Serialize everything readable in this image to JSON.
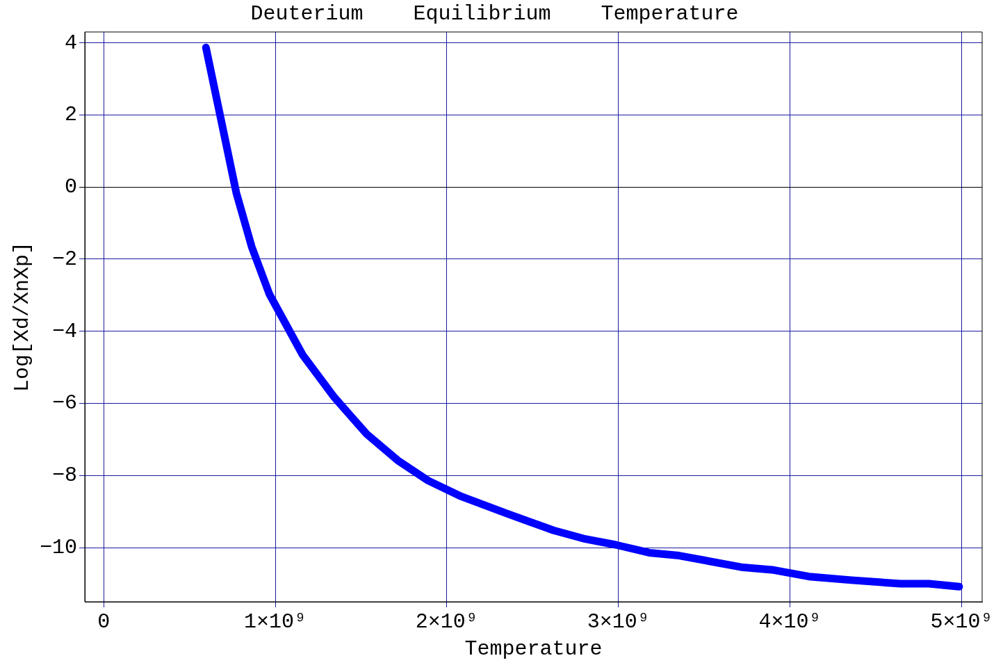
{
  "chart_data": {
    "type": "line",
    "title": "Deuterium    Equilibrium    Temperature",
    "xlabel": "Temperature",
    "ylabel": "Log[Xd/XnXp]",
    "x": [
      596000000,
      773000000,
      863000000,
      966000000,
      1159000000,
      1344000000,
      1533000000,
      1714000000,
      1891000000,
      2084000000,
      2343000000,
      2622000000,
      2807000000,
      2984000000,
      3180000000,
      3354000000,
      3716000000,
      3905000000,
      4110000000,
      4357000000,
      4644000000,
      4810000000,
      4986000000
    ],
    "series": [
      {
        "color": "#0000ff",
        "values": [
          3.87,
          -0.16,
          -1.66,
          -2.97,
          -4.65,
          -5.83,
          -6.85,
          -7.58,
          -8.14,
          -8.58,
          -9.04,
          -9.52,
          -9.76,
          -9.92,
          -10.14,
          -10.22,
          -10.54,
          -10.62,
          -10.8,
          -10.9,
          -11.0,
          -11.0,
          -11.08
        ]
      }
    ],
    "xlim": [
      -110000000,
      5120000000
    ],
    "ylim": [
      -11.5,
      4.3
    ],
    "xticks": [
      0,
      {
        "value": 1000000000,
        "label": "1×10⁹"
      },
      {
        "value": 2000000000,
        "label": "2×10⁹"
      },
      {
        "value": 3000000000,
        "label": "3×10⁹"
      },
      {
        "value": 4000000000,
        "label": "4×10⁹"
      },
      {
        "value": 5000000000,
        "label": "5×10⁹"
      }
    ],
    "yticks": [
      {
        "value": -10,
        "label": "−10"
      },
      {
        "value": -8,
        "label": "−8"
      },
      {
        "value": -6,
        "label": "−6"
      },
      {
        "value": -4,
        "label": "−4"
      },
      {
        "value": -2,
        "label": "−2"
      },
      0,
      2,
      4
    ],
    "grid": true,
    "legend": false,
    "marker": "none",
    "line_style": "solid"
  }
}
